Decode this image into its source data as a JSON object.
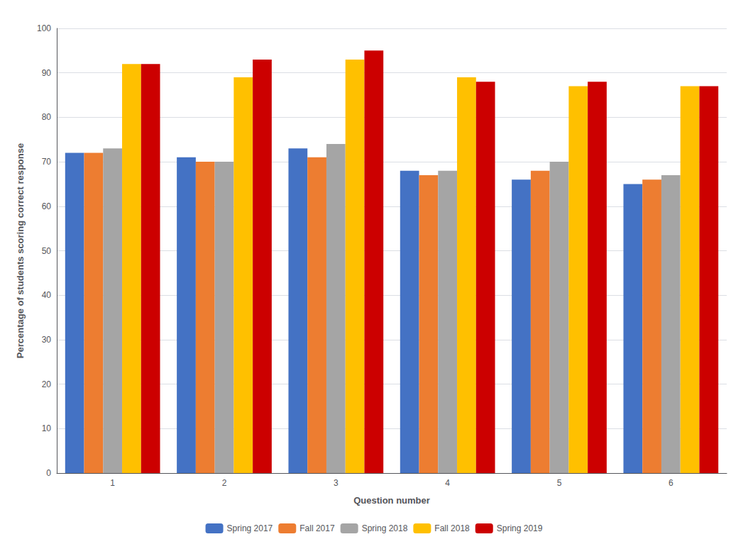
{
  "chart_data": {
    "type": "bar",
    "xlabel": "Question number",
    "ylabel": "Percentage of students scoring correct response",
    "categories": [
      "1",
      "2",
      "3",
      "4",
      "5",
      "6"
    ],
    "series": [
      {
        "name": "Spring 2017",
        "color": "#4472C4",
        "values": [
          72,
          71,
          73,
          68,
          66,
          65
        ]
      },
      {
        "name": "Fall 2017",
        "color": "#ED7D31",
        "values": [
          72,
          70,
          71,
          67,
          68,
          66
        ]
      },
      {
        "name": "Spring 2018",
        "color": "#A5A5A5",
        "values": [
          73,
          70,
          74,
          68,
          70,
          67
        ]
      },
      {
        "name": "Fall 2018",
        "color": "#FFC000",
        "values": [
          92,
          89,
          93,
          89,
          87,
          87
        ]
      },
      {
        "name": "Spring 2019",
        "color": "#CC0000",
        "values": [
          92,
          93,
          95,
          88,
          88,
          87
        ]
      }
    ],
    "ylim": [
      0,
      100
    ],
    "yticks": [
      0,
      10,
      20,
      30,
      40,
      50,
      60,
      70,
      80,
      90,
      100
    ],
    "grid": true,
    "legend": "bottom"
  }
}
